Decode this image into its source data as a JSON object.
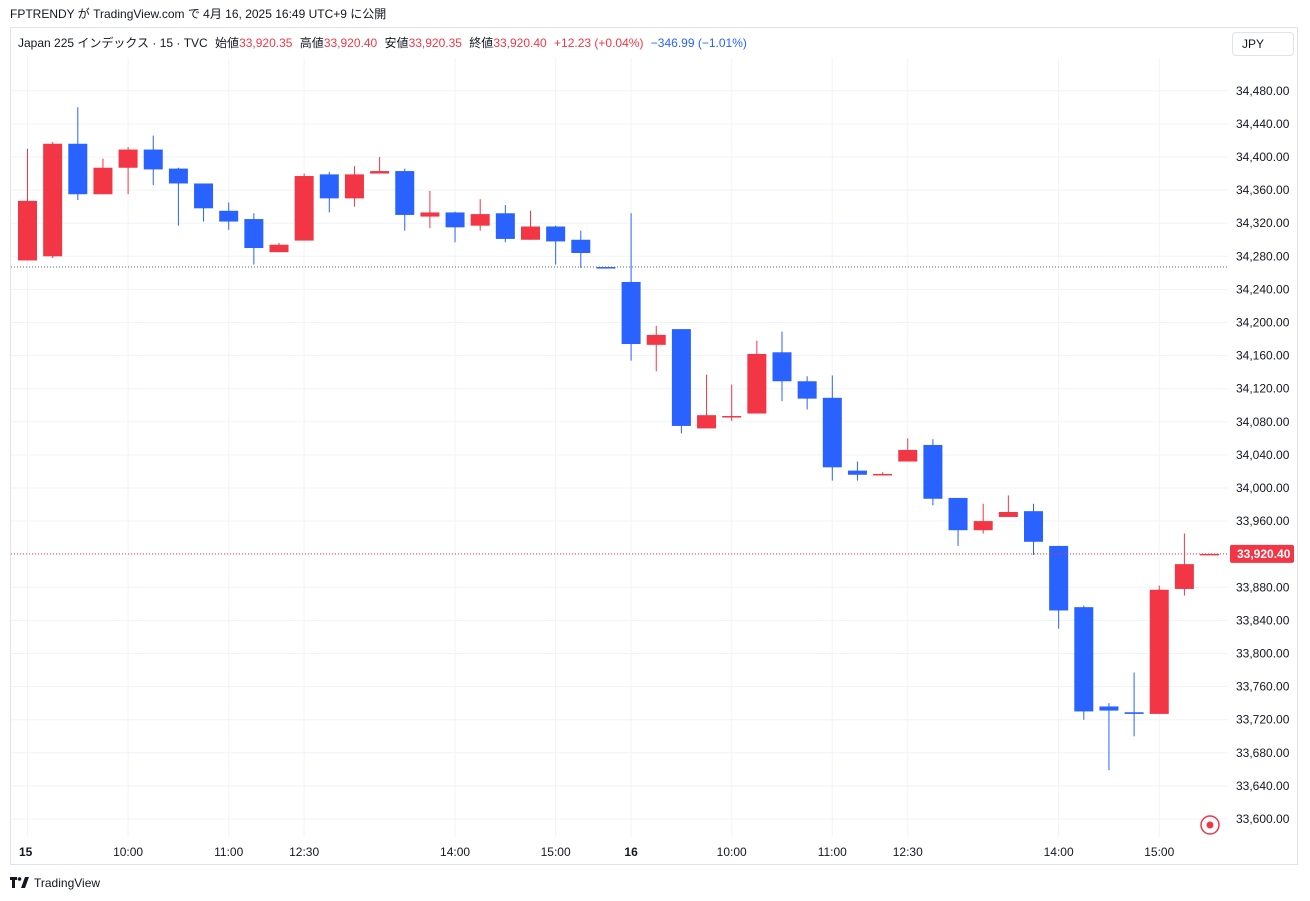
{
  "header": {
    "publisher_line": "FPTRENDY が TradingView.com で 4月 16, 2025 16:49 UTC+9 に公開"
  },
  "legend": {
    "symbol": "Japan 225 インデックス · 15 · TVC",
    "open_label": "始値",
    "open_value": "33,920.35",
    "high_label": "高値",
    "high_value": "33,920.40",
    "low_label": "安値",
    "low_value": "33,920.35",
    "close_label": "終値",
    "close_value": "33,920.40",
    "change": "+12.23 (+0.04%)",
    "session_change": "−346.99 (−1.01%)"
  },
  "currency": "JPY",
  "footer": {
    "brand": "TradingView"
  },
  "colors": {
    "up": "#f23645",
    "down": "#2962ff",
    "grid": "#f0f3fa",
    "axis_text": "#131722"
  },
  "chart_data": {
    "type": "candlestick",
    "title": "Japan 225 インデックス · 15 · TVC",
    "ylim": [
      33585,
      34505
    ],
    "y_ticks": [
      33600,
      33640,
      33680,
      33720,
      33760,
      33800,
      33840,
      33880,
      33920,
      33960,
      34000,
      34040,
      34080,
      34120,
      34160,
      34200,
      34240,
      34280,
      34320,
      34360,
      34400,
      34440,
      34480
    ],
    "y_tick_labels": [
      "33,600.00",
      "33,640.00",
      "33,680.00",
      "33,720.00",
      "33,760.00",
      "33,800.00",
      "33,840.00",
      "33,880.00",
      "33,920.00",
      "33,960.00",
      "34,000.00",
      "34,040.00",
      "34,080.00",
      "34,120.00",
      "34,160.00",
      "34,200.00",
      "34,240.00",
      "34,280.00",
      "34,320.00",
      "34,360.00",
      "34,400.00",
      "34,440.00",
      "34,480.00"
    ],
    "x_ticks": [
      {
        "index": 0,
        "label": "15",
        "bold": true
      },
      {
        "index": 4,
        "label": "10:00"
      },
      {
        "index": 8,
        "label": "11:00"
      },
      {
        "index": 11,
        "label": "12:30"
      },
      {
        "index": 17,
        "label": "14:00"
      },
      {
        "index": 21,
        "label": "15:00"
      },
      {
        "index": 24,
        "label": "16",
        "bold": true
      },
      {
        "index": 28,
        "label": "10:00"
      },
      {
        "index": 32,
        "label": "11:00"
      },
      {
        "index": 35,
        "label": "12:30"
      },
      {
        "index": 41,
        "label": "14:00"
      },
      {
        "index": 45,
        "label": "15:00"
      }
    ],
    "reference_price": 34267,
    "last_price": 33920.4,
    "last_price_label": "33,920.40",
    "candles": [
      {
        "o": 34275,
        "h": 34410,
        "l": 34275,
        "c": 34347
      },
      {
        "o": 34280,
        "h": 34418,
        "l": 34278,
        "c": 34416
      },
      {
        "o": 34416,
        "h": 34460,
        "l": 34348,
        "c": 34355
      },
      {
        "o": 34355,
        "h": 34398,
        "l": 34355,
        "c": 34387
      },
      {
        "o": 34387,
        "h": 34412,
        "l": 34355,
        "c": 34409
      },
      {
        "o": 34409,
        "h": 34426,
        "l": 34366,
        "c": 34385
      },
      {
        "o": 34386,
        "h": 34387,
        "l": 34317,
        "c": 34368
      },
      {
        "o": 34368,
        "h": 34368,
        "l": 34322,
        "c": 34338
      },
      {
        "o": 34335,
        "h": 34345,
        "l": 34312,
        "c": 34322
      },
      {
        "o": 34325,
        "h": 34332,
        "l": 34270,
        "c": 34290
      },
      {
        "o": 34285,
        "h": 34296,
        "l": 34285,
        "c": 34294
      },
      {
        "o": 34299,
        "h": 34380,
        "l": 34299,
        "c": 34377
      },
      {
        "o": 34379,
        "h": 34382,
        "l": 34333,
        "c": 34350
      },
      {
        "o": 34350,
        "h": 34389,
        "l": 34340,
        "c": 34379
      },
      {
        "o": 34380,
        "h": 34400,
        "l": 34380,
        "c": 34383
      },
      {
        "o": 34383,
        "h": 34386,
        "l": 34311,
        "c": 34330
      },
      {
        "o": 34328,
        "h": 34359,
        "l": 34314,
        "c": 34333
      },
      {
        "o": 34333,
        "h": 34334,
        "l": 34297,
        "c": 34315
      },
      {
        "o": 34317,
        "h": 34349,
        "l": 34311,
        "c": 34331
      },
      {
        "o": 34332,
        "h": 34342,
        "l": 34297,
        "c": 34301
      },
      {
        "o": 34300,
        "h": 34335,
        "l": 34300,
        "c": 34316
      },
      {
        "o": 34316,
        "h": 34317,
        "l": 34270,
        "c": 34298
      },
      {
        "o": 34300,
        "h": 34311,
        "l": 34266,
        "c": 34284
      },
      {
        "o": 34267,
        "h": 34267,
        "l": 34266,
        "c": 34266
      },
      {
        "o": 34249,
        "h": 34332,
        "l": 34154,
        "c": 34174
      },
      {
        "o": 34173,
        "h": 34196,
        "l": 34141,
        "c": 34185
      },
      {
        "o": 34192,
        "h": 34192,
        "l": 34066,
        "c": 34075
      },
      {
        "o": 34072,
        "h": 34137,
        "l": 34072,
        "c": 34088
      },
      {
        "o": 34086,
        "h": 34125,
        "l": 34081,
        "c": 34087
      },
      {
        "o": 34090,
        "h": 34178,
        "l": 34090,
        "c": 34162
      },
      {
        "o": 34164,
        "h": 34189,
        "l": 34105,
        "c": 34129
      },
      {
        "o": 34129,
        "h": 34135,
        "l": 34095,
        "c": 34108
      },
      {
        "o": 34109,
        "h": 34136,
        "l": 34009,
        "c": 34025
      },
      {
        "o": 34021,
        "h": 34032,
        "l": 34009,
        "c": 34016
      },
      {
        "o": 34017,
        "h": 34019,
        "l": 34015,
        "c": 34017
      },
      {
        "o": 34032,
        "h": 34060,
        "l": 34032,
        "c": 34046
      },
      {
        "o": 34052,
        "h": 34059,
        "l": 33979,
        "c": 33987
      },
      {
        "o": 33988,
        "h": 33988,
        "l": 33930,
        "c": 33949
      },
      {
        "o": 33949,
        "h": 33981,
        "l": 33945,
        "c": 33960
      },
      {
        "o": 33965,
        "h": 33991,
        "l": 33965,
        "c": 33971
      },
      {
        "o": 33972,
        "h": 33981,
        "l": 33919,
        "c": 33935
      },
      {
        "o": 33930,
        "h": 33930,
        "l": 33830,
        "c": 33852
      },
      {
        "o": 33856,
        "h": 33858,
        "l": 33720,
        "c": 33730
      },
      {
        "o": 33736,
        "h": 33740,
        "l": 33659,
        "c": 33731
      },
      {
        "o": 33729,
        "h": 33777,
        "l": 33700,
        "c": 33727
      },
      {
        "o": 33727,
        "h": 33882,
        "l": 33727,
        "c": 33877
      },
      {
        "o": 33878,
        "h": 33945,
        "l": 33870,
        "c": 33908
      },
      {
        "o": 33920.35,
        "h": 33920.4,
        "l": 33920.35,
        "c": 33920.4
      }
    ]
  }
}
